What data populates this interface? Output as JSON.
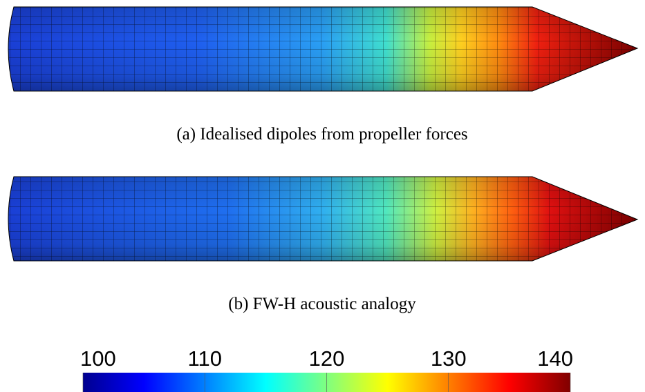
{
  "figures": [
    {
      "caption": "(a) Idealised dipoles from propeller forces"
    },
    {
      "caption": "(b) FW-H acoustic analogy"
    }
  ],
  "colorbar": {
    "lim": [
      100,
      140
    ],
    "ticks": [
      100,
      110,
      120,
      130,
      140
    ]
  }
}
